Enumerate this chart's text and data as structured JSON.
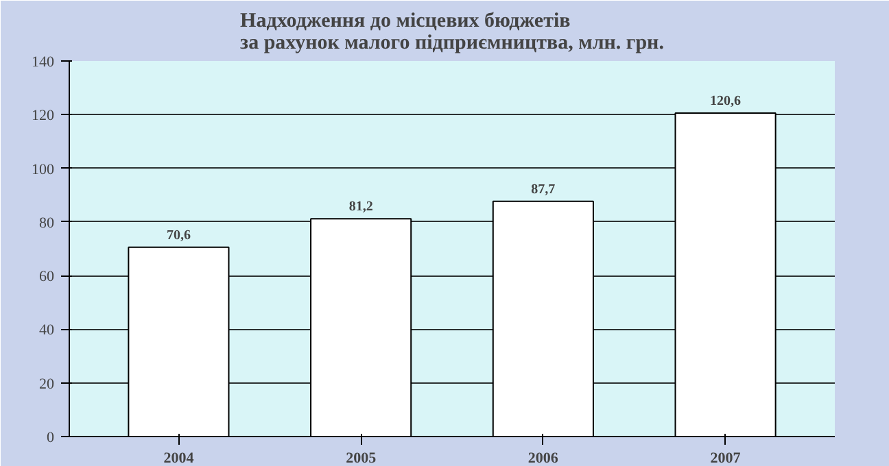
{
  "chart_data": {
    "type": "bar",
    "title": "Надходження до місцевих бюджетів\nза рахунок малого підприємництва, млн. грн.",
    "categories": [
      "2004",
      "2005",
      "2006",
      "2007"
    ],
    "values": [
      70.6,
      81.2,
      87.7,
      120.6
    ],
    "value_labels": [
      "70,6",
      "81,2",
      "87,7",
      "120,6"
    ],
    "color": "#ffffff",
    "ylim": [
      0,
      140
    ],
    "yticks": [
      0,
      20,
      40,
      60,
      80,
      100,
      120,
      140
    ],
    "grid": "y"
  }
}
